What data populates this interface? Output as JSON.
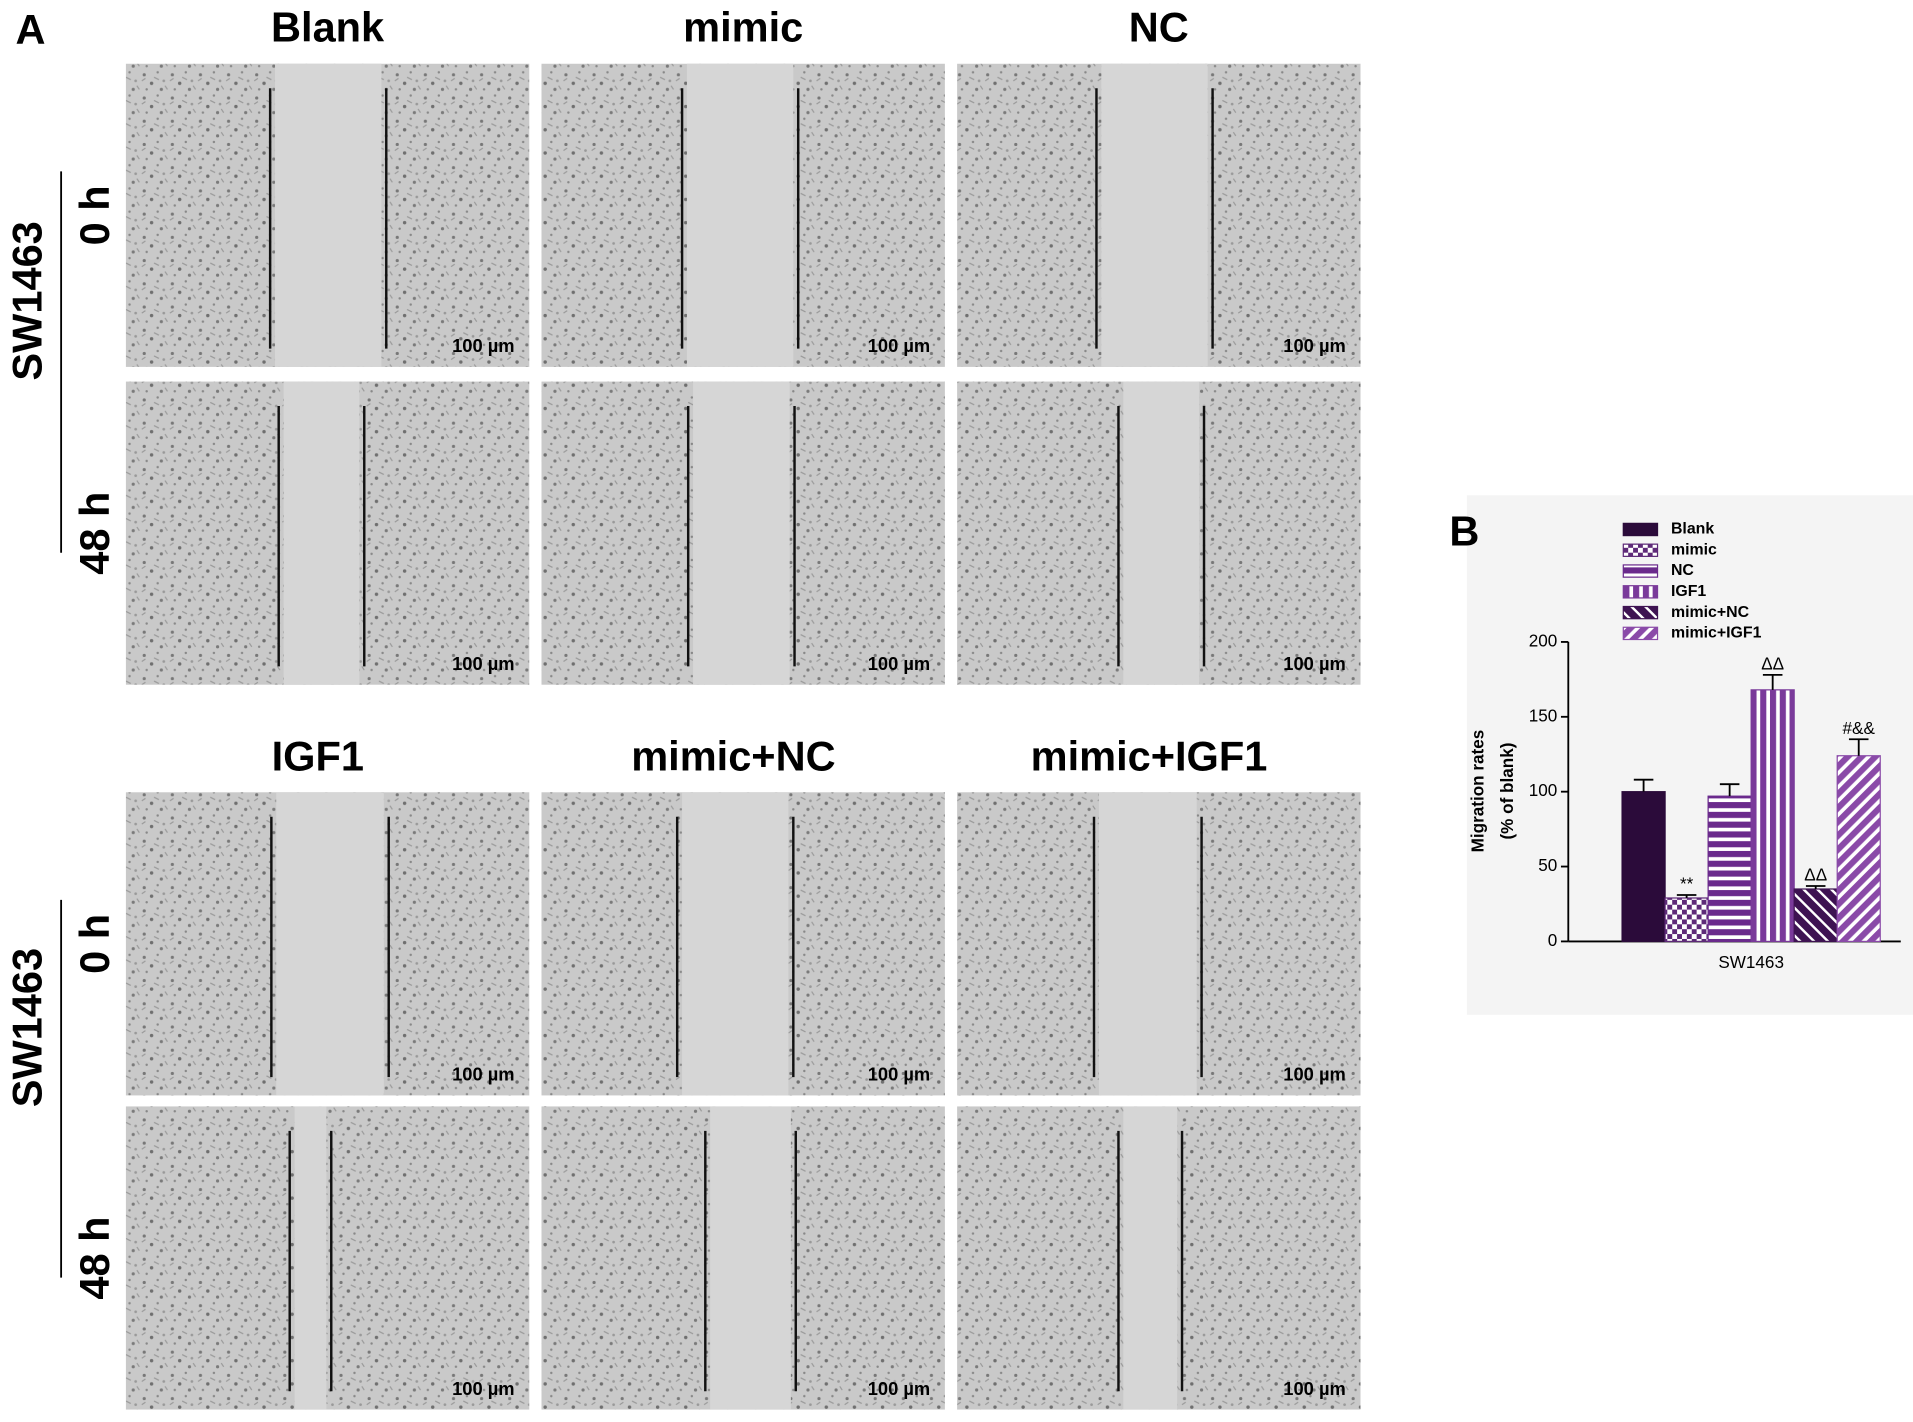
{
  "panel_a": {
    "label": "A",
    "blocks": [
      {
        "columns": [
          "Blank",
          "mimic",
          "NC"
        ],
        "cell_line": "SW1463",
        "rows": [
          "0 h",
          "48 h"
        ],
        "scale_bars": [
          [
            "100 µm",
            "100 µm",
            "100 µm"
          ],
          [
            "100 µm",
            "100 µm",
            "100 µm"
          ]
        ]
      },
      {
        "columns": [
          "IGF1",
          "mimic+NC",
          "mimic+IGF1"
        ],
        "cell_line": "SW1463",
        "rows": [
          "0 h",
          "48 h"
        ],
        "scale_bars": [
          [
            "100 µm",
            "100 µm",
            "100 µm"
          ],
          [
            "100 µm",
            "100 µm",
            "100 µm"
          ]
        ]
      }
    ]
  },
  "chart_data": {
    "type": "bar",
    "panel_label": "B",
    "y_label": [
      "Migration rates",
      "(% of blank)"
    ],
    "categories": [
      "SW1463"
    ],
    "ylim": [
      0,
      200
    ],
    "yticks": [
      0,
      50,
      100,
      150,
      200
    ],
    "legend": "top",
    "series": [
      {
        "name": "Blank",
        "color": "#2b0b3a",
        "pattern": "solid",
        "values": [
          100
        ],
        "errors": [
          8
        ]
      },
      {
        "name": "mimic",
        "color": "#5e2a78",
        "pattern": "checker",
        "values": [
          29
        ],
        "errors": [
          2
        ],
        "annotation": "**"
      },
      {
        "name": "NC",
        "color": "#6a2a8c",
        "pattern": "hlines",
        "values": [
          97
        ],
        "errors": [
          8
        ]
      },
      {
        "name": "IGF1",
        "color": "#7a3a9a",
        "pattern": "vlines",
        "values": [
          168
        ],
        "errors": [
          10
        ],
        "annotation": "ΔΔ"
      },
      {
        "name": "mimic+NC",
        "color": "#3e1352",
        "pattern": "diag",
        "values": [
          35
        ],
        "errors": [
          2
        ],
        "annotation": "ΔΔ"
      },
      {
        "name": "mimic+IGF1",
        "color": "#8a4aa8",
        "pattern": "diag2",
        "values": [
          124
        ],
        "errors": [
          11
        ],
        "annotation": "#&&"
      }
    ]
  }
}
